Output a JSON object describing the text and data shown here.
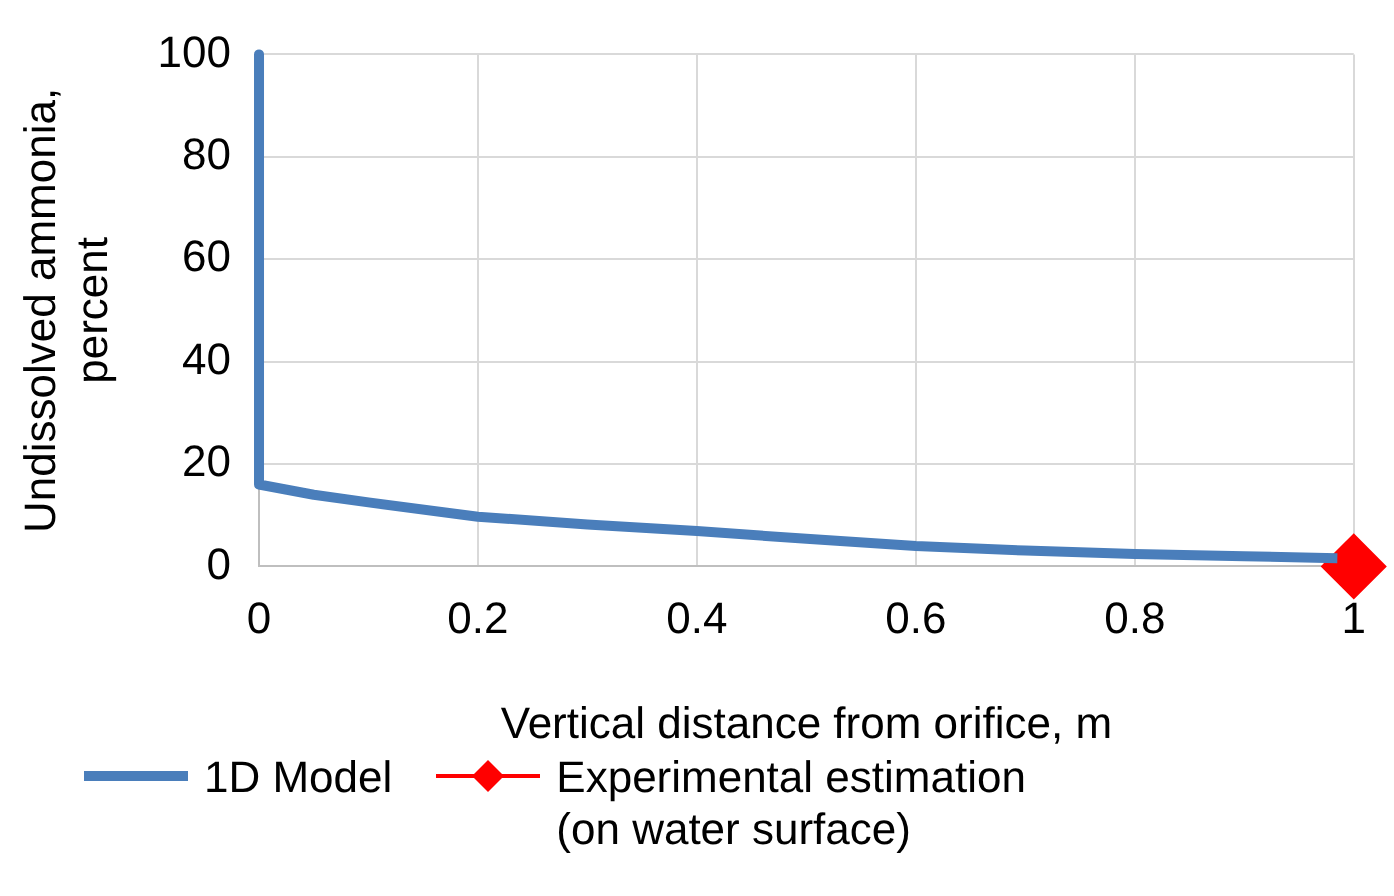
{
  "chart_data": {
    "type": "line",
    "xlabel": "Vertical distance from orifice, m",
    "ylabel": "Undissolved ammonia, percent",
    "xlim": [
      0,
      1
    ],
    "xticks": [
      0,
      0.2,
      0.4,
      0.6,
      0.8,
      1
    ],
    "ylim": [
      0,
      100
    ],
    "yticks": [
      0,
      20,
      40,
      60,
      80,
      100
    ],
    "grid": true,
    "legend": "bottom",
    "series": [
      {
        "name": "1D Model",
        "color": "#4a7ebb",
        "marker": "none",
        "x": [
          0,
          0,
          0.05,
          0.1,
          0.2,
          0.3,
          0.4,
          0.5,
          0.6,
          0.7,
          0.8,
          0.9,
          0.985
        ],
        "values": [
          100,
          16,
          14,
          12.5,
          9.7,
          8.2,
          6.9,
          5.4,
          4,
          3.1,
          2.4,
          2,
          1.6
        ]
      },
      {
        "name": "Experimental estimation (on water surface)",
        "type": "scatter",
        "color": "#ff0000",
        "marker": "diamond",
        "x": [
          1
        ],
        "values": [
          0
        ]
      }
    ]
  }
}
